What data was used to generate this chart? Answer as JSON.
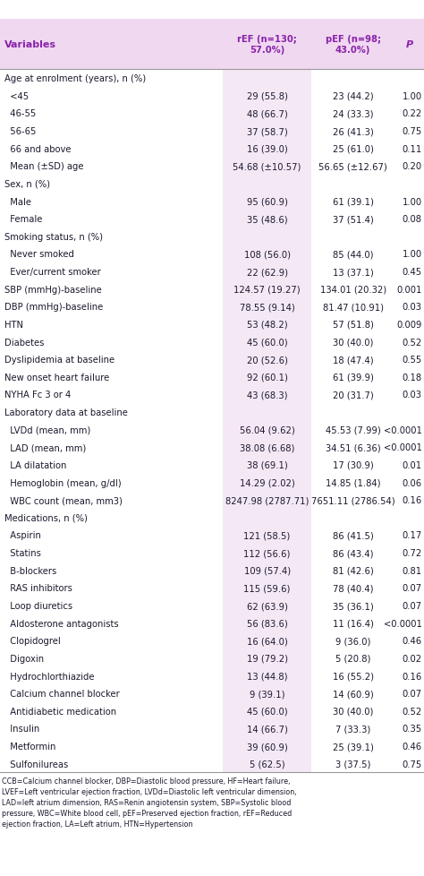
{
  "header": [
    "Variables",
    "rEF (n=130;\n57.0%)",
    "pEF (n=98;\n43.0%)",
    "P"
  ],
  "header_bg": "#f0d8f0",
  "col_bg": "#f5e8f5",
  "rows": [
    {
      "label": "Age at enrolment (years), n (%)",
      "ref": "",
      "pef": "",
      "p": "",
      "category": true
    },
    {
      "label": "  <45",
      "ref": "29 (55.8)",
      "pef": "23 (44.2)",
      "p": "1.00",
      "category": false
    },
    {
      "label": "  46-55",
      "ref": "48 (66.7)",
      "pef": "24 (33.3)",
      "p": "0.22",
      "category": false
    },
    {
      "label": "  56-65",
      "ref": "37 (58.7)",
      "pef": "26 (41.3)",
      "p": "0.75",
      "category": false
    },
    {
      "label": "  66 and above",
      "ref": "16 (39.0)",
      "pef": "25 (61.0)",
      "p": "0.11",
      "category": false
    },
    {
      "label": "  Mean (±SD) age",
      "ref": "54.68 (±10.57)",
      "pef": "56.65 (±12.67)",
      "p": "0.20",
      "category": false
    },
    {
      "label": "Sex, n (%)",
      "ref": "",
      "pef": "",
      "p": "",
      "category": true
    },
    {
      "label": "  Male",
      "ref": "95 (60.9)",
      "pef": "61 (39.1)",
      "p": "1.00",
      "category": false
    },
    {
      "label": "  Female",
      "ref": "35 (48.6)",
      "pef": "37 (51.4)",
      "p": "0.08",
      "category": false
    },
    {
      "label": "Smoking status, n (%)",
      "ref": "",
      "pef": "",
      "p": "",
      "category": true
    },
    {
      "label": "  Never smoked",
      "ref": "108 (56.0)",
      "pef": "85 (44.0)",
      "p": "1.00",
      "category": false
    },
    {
      "label": "  Ever/current smoker",
      "ref": "22 (62.9)",
      "pef": "13 (37.1)",
      "p": "0.45",
      "category": false
    },
    {
      "label": "SBP (mmHg)-baseline",
      "ref": "124.57 (19.27)",
      "pef": "134.01 (20.32)",
      "p": "0.001",
      "category": false
    },
    {
      "label": "DBP (mmHg)-baseline",
      "ref": "78.55 (9.14)",
      "pef": "81.47 (10.91)",
      "p": "0.03",
      "category": false
    },
    {
      "label": "HTN",
      "ref": "53 (48.2)",
      "pef": "57 (51.8)",
      "p": "0.009",
      "category": false
    },
    {
      "label": "Diabetes",
      "ref": "45 (60.0)",
      "pef": "30 (40.0)",
      "p": "0.52",
      "category": false
    },
    {
      "label": "Dyslipidemia at baseline",
      "ref": "20 (52.6)",
      "pef": "18 (47.4)",
      "p": "0.55",
      "category": false
    },
    {
      "label": "New onset heart failure",
      "ref": "92 (60.1)",
      "pef": "61 (39.9)",
      "p": "0.18",
      "category": false
    },
    {
      "label": "NYHA Fc 3 or 4",
      "ref": "43 (68.3)",
      "pef": "20 (31.7)",
      "p": "0.03",
      "category": false
    },
    {
      "label": "Laboratory data at baseline",
      "ref": "",
      "pef": "",
      "p": "",
      "category": true
    },
    {
      "label": "  LVDd (mean, mm)",
      "ref": "56.04 (9.62)",
      "pef": "45.53 (7.99)",
      "p": "<0.0001",
      "category": false
    },
    {
      "label": "  LAD (mean, mm)",
      "ref": "38.08 (6.68)",
      "pef": "34.51 (6.36)",
      "p": "<0.0001",
      "category": false
    },
    {
      "label": "  LA dilatation",
      "ref": "38 (69.1)",
      "pef": "17 (30.9)",
      "p": "0.01",
      "category": false
    },
    {
      "label": "  Hemoglobin (mean, g/dl)",
      "ref": "14.29 (2.02)",
      "pef": "14.85 (1.84)",
      "p": "0.06",
      "category": false
    },
    {
      "label": "  WBC count (mean, mm3)",
      "ref": "8247.98 (2787.71)",
      "pef": "7651.11 (2786.54)",
      "p": "0.16",
      "category": false
    },
    {
      "label": "Medications, n (%)",
      "ref": "",
      "pef": "",
      "p": "",
      "category": true
    },
    {
      "label": "  Aspirin",
      "ref": "121 (58.5)",
      "pef": "86 (41.5)",
      "p": "0.17",
      "category": false
    },
    {
      "label": "  Statins",
      "ref": "112 (56.6)",
      "pef": "86 (43.4)",
      "p": "0.72",
      "category": false
    },
    {
      "label": "  B-blockers",
      "ref": "109 (57.4)",
      "pef": "81 (42.6)",
      "p": "0.81",
      "category": false
    },
    {
      "label": "  RAS inhibitors",
      "ref": "115 (59.6)",
      "pef": "78 (40.4)",
      "p": "0.07",
      "category": false
    },
    {
      "label": "  Loop diuretics",
      "ref": "62 (63.9)",
      "pef": "35 (36.1)",
      "p": "0.07",
      "category": false
    },
    {
      "label": "  Aldosterone antagonists",
      "ref": "56 (83.6)",
      "pef": "11 (16.4)",
      "p": "<0.0001",
      "category": false
    },
    {
      "label": "  Clopidogrel",
      "ref": "16 (64.0)",
      "pef": "9 (36.0)",
      "p": "0.46",
      "category": false
    },
    {
      "label": "  Digoxin",
      "ref": "19 (79.2)",
      "pef": "5 (20.8)",
      "p": "0.02",
      "category": false
    },
    {
      "label": "  Hydrochlorthiazide",
      "ref": "13 (44.8)",
      "pef": "16 (55.2)",
      "p": "0.16",
      "category": false
    },
    {
      "label": "  Calcium channel blocker",
      "ref": "9 (39.1)",
      "pef": "14 (60.9)",
      "p": "0.07",
      "category": false
    },
    {
      "label": "  Antidiabetic medication",
      "ref": "45 (60.0)",
      "pef": "30 (40.0)",
      "p": "0.52",
      "category": false
    },
    {
      "label": "  Insulin",
      "ref": "14 (66.7)",
      "pef": "7 (33.3)",
      "p": "0.35",
      "category": false
    },
    {
      "label": "  Metformin",
      "ref": "39 (60.9)",
      "pef": "25 (39.1)",
      "p": "0.46",
      "category": false
    },
    {
      "label": "  Sulfonilureas",
      "ref": "5 (62.5)",
      "pef": "3 (37.5)",
      "p": "0.75",
      "category": false
    }
  ],
  "footnote": "CCB=Calcium channel blocker, DBP=Diastolic blood pressure, HF=Heart failure,\nLVEF=Left ventricular ejection fraction, LVDd=Diastolic left ventricular dimension,\nLAD=left atrium dimension, RAS=Renin angiotensin system, SBP=Systolic blood\npressure, WBC=White blood cell, pEF=Preserved ejection fraction, rEF=Reduced\nejection fraction, LA=Left atrium, HTN=Hypertension",
  "text_color": "#1a1a2e",
  "purple_color": "#8822aa",
  "font_size": 7.2,
  "header_font_size": 8.0,
  "footnote_font_size": 5.8
}
